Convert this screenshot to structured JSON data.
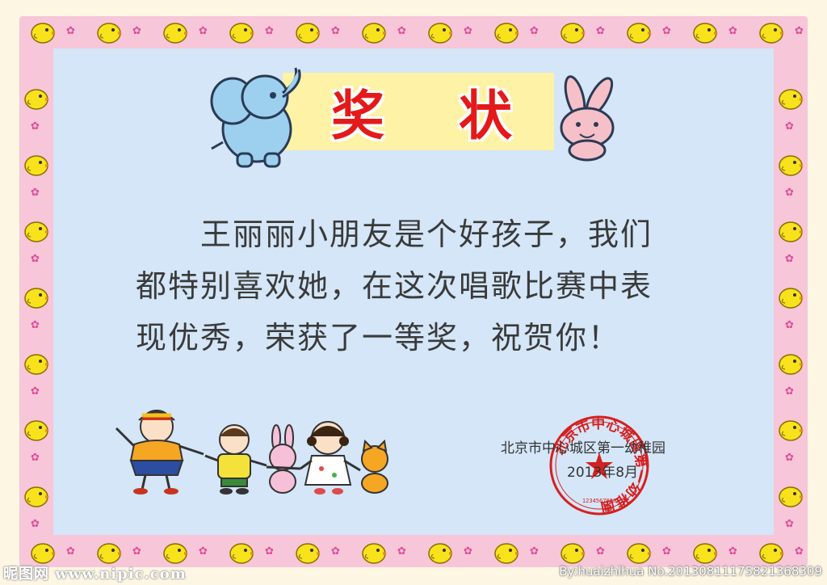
{
  "certificate": {
    "title_chars": [
      "奖",
      "状"
    ],
    "body_lines": [
      "　　王丽丽小朋友是个好孩子，我们",
      "都特别喜欢她，在这次唱歌比赛中表",
      "现优秀，荣获了一等奖，祝贺你！"
    ],
    "issuer": "北京市中心城区第一幼稚园",
    "date": "2013年8月",
    "seal_ring_text": "北京市中心城區第一幼稚園",
    "seal_number": "1234567890"
  },
  "watermark": {
    "site": "昵图网 www.nipic.com",
    "credit": "By:huaizhihua  No.20130811175821368309"
  },
  "colors": {
    "border_pink": "#f7c6d8",
    "inner_blue": "#d4e6f7",
    "title_red": "#e41a1a",
    "title_band_yellow": "#fdf2a6",
    "seal_red": "#d42020"
  }
}
